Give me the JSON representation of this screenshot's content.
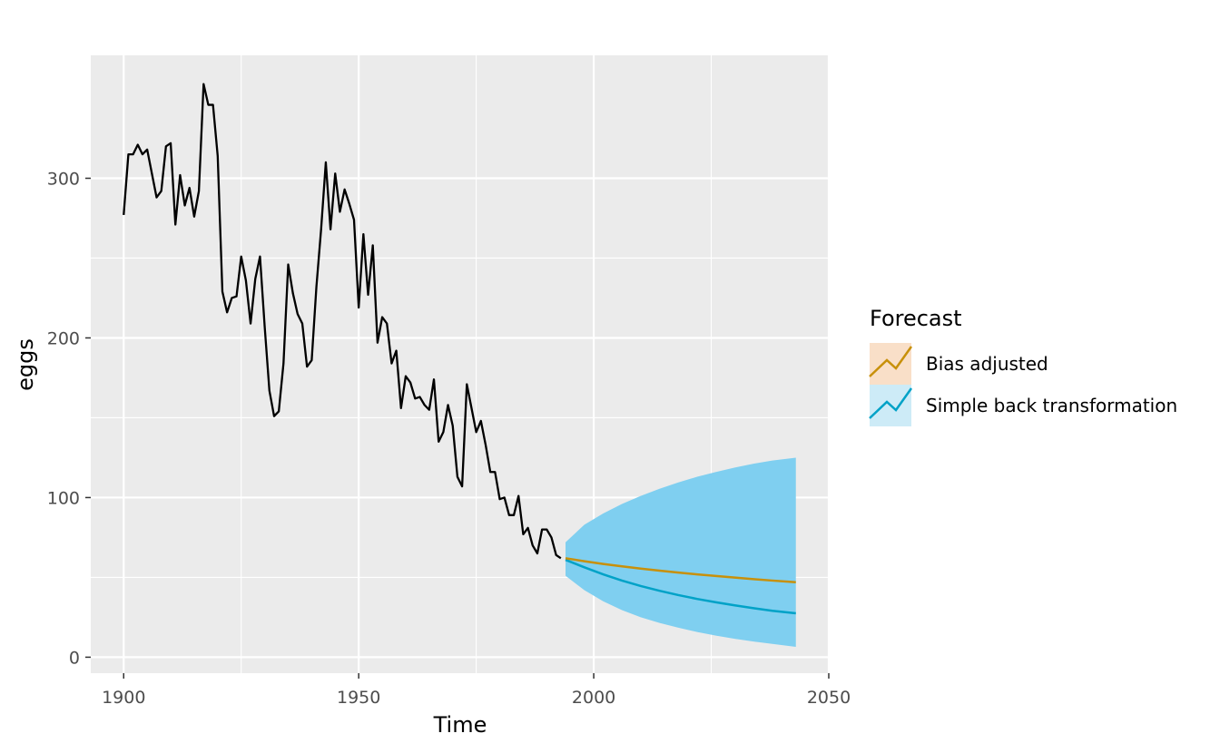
{
  "chart_data": {
    "type": "line",
    "title": "",
    "xlabel": "Time",
    "ylabel": "eggs",
    "xlim": [
      1893,
      2050
    ],
    "ylim": [
      -10,
      377
    ],
    "xticks": [
      1900,
      1950,
      2000,
      2050
    ],
    "yticks": [
      0,
      100,
      200,
      300
    ],
    "grid": true,
    "legend": {
      "title": "Forecast",
      "placement": "right",
      "entries": [
        {
          "label": "Bias adjusted",
          "line_color": "#C8900A",
          "fill_color": "#F9DFC8"
        },
        {
          "label": "Simple back transformation",
          "line_color": "#00A2C7",
          "fill_color": "#CDEBF7"
        }
      ]
    },
    "colors": {
      "panel_background": "#EBEBEB",
      "grid": "#FFFFFF",
      "history_line": "#000000",
      "interval_fill": "#7FCFF0"
    },
    "history": {
      "x": [
        1900,
        1901,
        1902,
        1903,
        1904,
        1905,
        1906,
        1907,
        1908,
        1909,
        1910,
        1911,
        1912,
        1913,
        1914,
        1915,
        1916,
        1917,
        1918,
        1919,
        1920,
        1921,
        1922,
        1923,
        1924,
        1925,
        1926,
        1927,
        1928,
        1929,
        1930,
        1931,
        1932,
        1933,
        1934,
        1935,
        1936,
        1937,
        1938,
        1939,
        1940,
        1941,
        1942,
        1943,
        1944,
        1945,
        1946,
        1947,
        1948,
        1949,
        1950,
        1951,
        1952,
        1953,
        1954,
        1955,
        1956,
        1957,
        1958,
        1959,
        1960,
        1961,
        1962,
        1963,
        1964,
        1965,
        1966,
        1967,
        1968,
        1969,
        1970,
        1971,
        1972,
        1973,
        1974,
        1975,
        1976,
        1977,
        1978,
        1979,
        1980,
        1981,
        1982,
        1983,
        1984,
        1985,
        1986,
        1987,
        1988,
        1989,
        1990,
        1991,
        1992,
        1993
      ],
      "y": [
        277,
        315,
        315,
        321,
        315,
        318,
        303,
        288,
        292,
        320,
        322,
        271,
        302,
        283,
        294,
        276,
        292,
        359,
        346,
        346,
        314,
        229,
        216,
        225,
        226,
        251,
        236,
        209,
        237,
        251,
        207,
        167,
        151,
        154,
        184,
        246,
        228,
        215,
        209,
        182,
        186,
        232,
        268,
        310,
        268,
        303,
        279,
        293,
        284,
        274,
        219,
        265,
        227,
        258,
        197,
        213,
        209,
        184,
        192,
        156,
        176,
        172,
        162,
        163,
        158,
        155,
        174,
        135,
        141,
        158,
        145,
        113,
        107,
        171,
        156,
        141,
        148,
        133,
        116,
        116,
        99,
        100,
        89,
        89,
        101,
        77,
        81,
        70,
        65,
        80,
        80,
        75,
        64,
        62
      ]
    },
    "forecast": {
      "x": [
        1994,
        1998,
        2002,
        2006,
        2010,
        2014,
        2018,
        2022,
        2026,
        2030,
        2034,
        2038,
        2043
      ],
      "bias_adjusted": [
        62.0,
        60.1,
        58.4,
        56.9,
        55.5,
        54.2,
        53.0,
        51.9,
        50.9,
        49.9,
        48.9,
        48.0,
        47.0
      ],
      "simple_back_transformation": [
        61.0,
        56.3,
        51.9,
        48.0,
        44.6,
        41.6,
        38.9,
        36.5,
        34.4,
        32.5,
        30.7,
        29.1,
        27.5
      ],
      "interval_lower": [
        51.0,
        42.0,
        35.0,
        29.5,
        25.0,
        21.5,
        18.5,
        15.8,
        13.5,
        11.5,
        9.8,
        8.3,
        6.5
      ],
      "interval_upper": [
        72.0,
        83.0,
        90.0,
        96.0,
        101.0,
        105.5,
        109.5,
        113.0,
        116.0,
        118.8,
        121.2,
        123.2,
        125.0
      ]
    }
  }
}
